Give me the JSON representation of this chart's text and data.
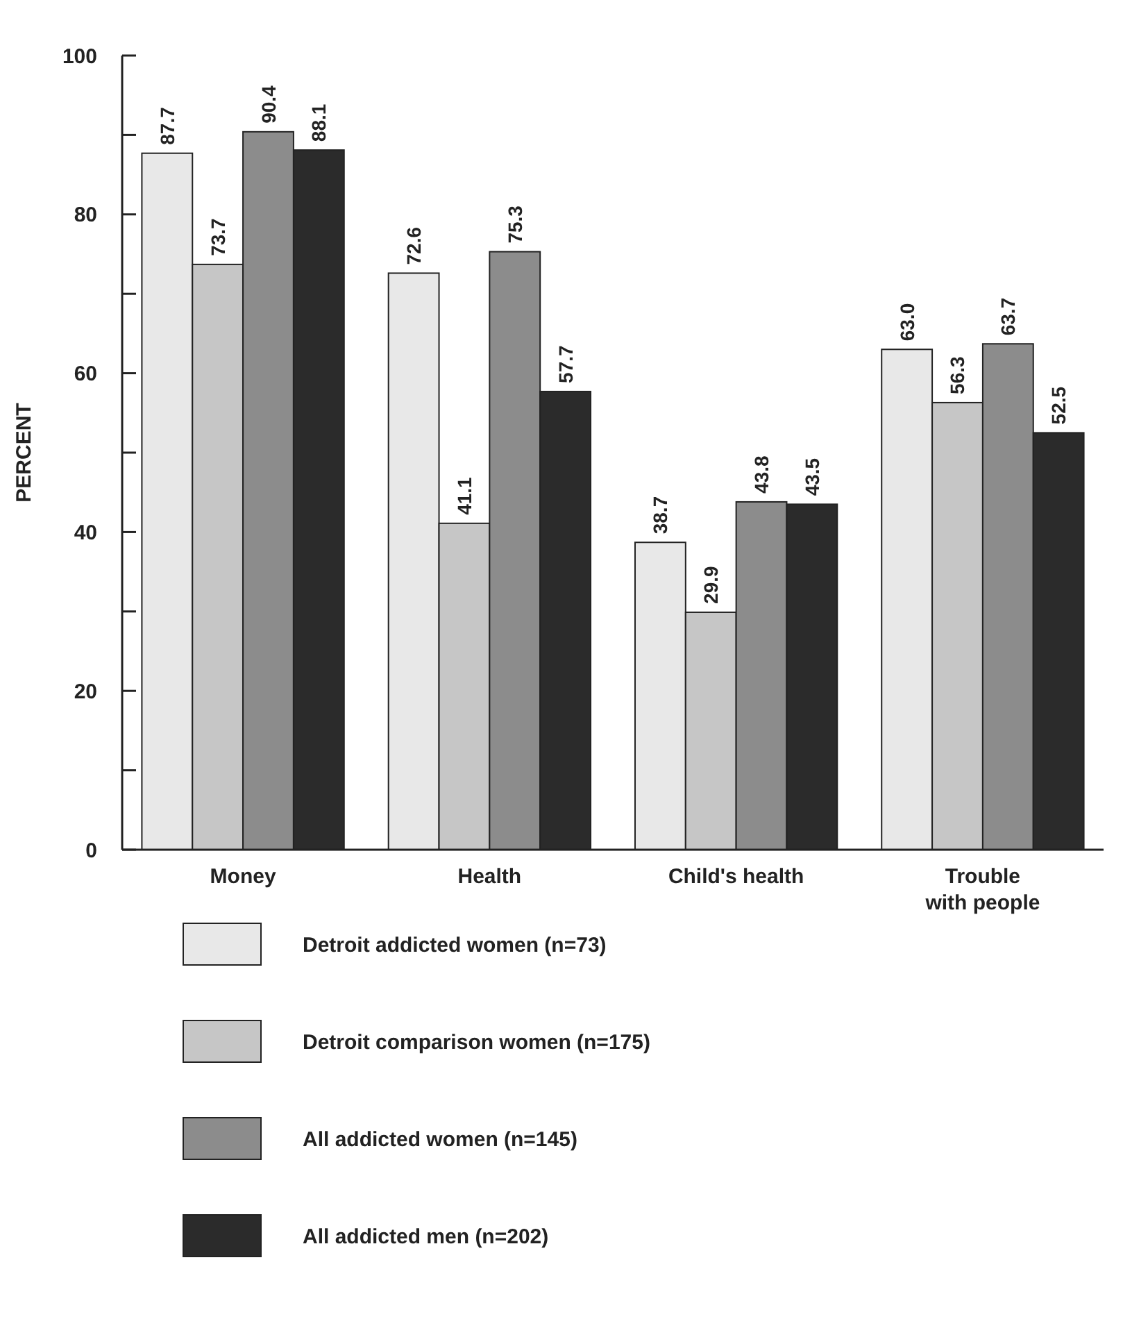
{
  "chart_data": {
    "type": "bar",
    "ylabel": "PERCENT",
    "categories": [
      "Money",
      "Health",
      "Child's health",
      "Trouble with people"
    ],
    "series": [
      {
        "name": "Detroit addicted women (n=73)",
        "color": "#e8e8e8",
        "values": [
          87.7,
          72.6,
          38.7,
          63.0
        ],
        "value_labels": [
          "87.7",
          "72.6",
          "38.7",
          "63.0"
        ]
      },
      {
        "name": "Detroit comparison women (n=175)",
        "color": "#c6c6c6",
        "values": [
          73.7,
          41.1,
          29.9,
          56.3
        ],
        "value_labels": [
          "73.7",
          "41.1",
          "29.9",
          "56.3"
        ]
      },
      {
        "name": "All addicted women (n=145)",
        "color": "#8c8c8c",
        "values": [
          90.4,
          75.3,
          43.8,
          63.7
        ],
        "value_labels": [
          "90.4",
          "75.3",
          "43.8",
          "63.7"
        ]
      },
      {
        "name": "All addicted men (n=202)",
        "color": "#2b2b2b",
        "values": [
          88.1,
          57.7,
          43.5,
          52.5
        ],
        "value_labels": [
          "88.1",
          "57.7",
          "43.5",
          "52.5"
        ]
      }
    ],
    "ylim": [
      0,
      100
    ],
    "yticks": [
      0,
      {
        "value": 10,
        "label": null
      },
      20,
      {
        "value": 30,
        "label": null
      },
      40,
      {
        "value": 50,
        "label": null
      },
      60,
      {
        "value": 70,
        "label": null
      },
      80,
      {
        "value": 90,
        "label": null
      },
      100
    ],
    "grid": false,
    "legend": "bottom"
  }
}
